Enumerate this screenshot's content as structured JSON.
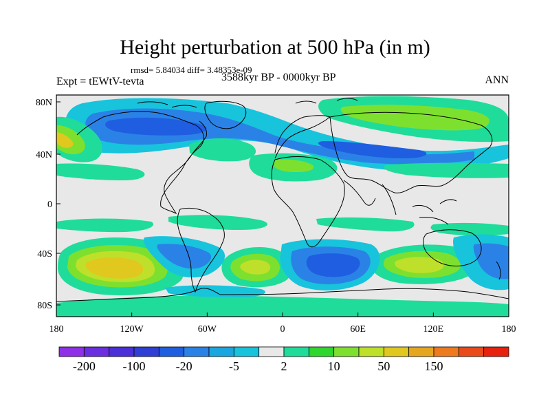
{
  "header": {
    "title": "Height perturbation at 500 hPa (in m)",
    "stats": "rmsd= 5.84034 diff= 3.48353e-09",
    "experiment": "Expt = tEWtV-tevta",
    "period": "3588kyr BP - 0000kyr BP",
    "season": "ANN"
  },
  "axes": {
    "lat_ticks": [
      "80N",
      "40N",
      "0",
      "40S",
      "80S"
    ],
    "lon_ticks": [
      "180",
      "120W",
      "60W",
      "0",
      "60E",
      "120E",
      "180"
    ]
  },
  "colorbar": {
    "colors": [
      "#8f2fe8",
      "#6a2ee0",
      "#4b2fd8",
      "#2f3fd6",
      "#1f5ee0",
      "#2a82e6",
      "#1aa6e0",
      "#18c3dc",
      "#e8e8e8",
      "#1fdc9a",
      "#2ed62e",
      "#7ee02e",
      "#bfe02a",
      "#e0c81e",
      "#e6a61e",
      "#ee7a1e",
      "#ea4a1a",
      "#e8200e"
    ],
    "labels": [
      "-200",
      "-100",
      "-20",
      "-5",
      "2",
      "10",
      "50",
      "150"
    ]
  }
}
